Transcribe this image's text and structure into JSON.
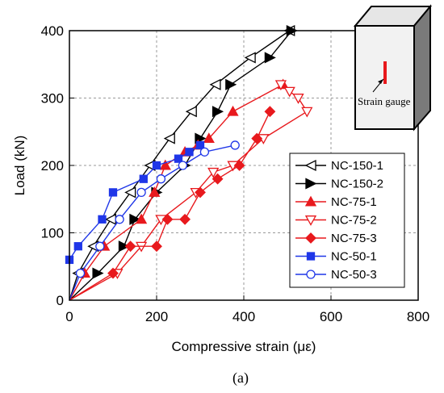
{
  "chart_data": {
    "type": "line",
    "title": "",
    "xlabel": "Compressive strain (με)",
    "ylabel": "Load (kN)",
    "xlim": [
      0,
      800
    ],
    "ylim": [
      0,
      400
    ],
    "xticks": [
      0,
      200,
      400,
      600,
      800
    ],
    "yticks": [
      0,
      100,
      200,
      300,
      400
    ],
    "grid": true,
    "legend_position": "right",
    "caption": "(a)",
    "inset": {
      "label": "Strain gauge",
      "gauge_color": "#e8191d"
    },
    "series": [
      {
        "name": "NC-150-1",
        "color": "#000000",
        "marker": "triangle-left",
        "filled": false,
        "x": [
          0,
          20,
          55,
          95,
          140,
          185,
          230,
          280,
          335,
          415,
          505
        ],
        "y": [
          0,
          40,
          80,
          120,
          160,
          200,
          240,
          280,
          320,
          360,
          400
        ]
      },
      {
        "name": "NC-150-2",
        "color": "#000000",
        "marker": "triangle-right",
        "filled": true,
        "x": [
          0,
          65,
          125,
          150,
          200,
          265,
          300,
          340,
          370,
          460,
          510
        ],
        "y": [
          0,
          40,
          80,
          120,
          160,
          200,
          240,
          280,
          320,
          360,
          400
        ]
      },
      {
        "name": "NC-75-1",
        "color": "#e8191d",
        "marker": "triangle-up",
        "filled": true,
        "x": [
          0,
          35,
          80,
          165,
          195,
          220,
          265,
          295,
          320,
          375,
          490
        ],
        "y": [
          0,
          40,
          80,
          120,
          160,
          200,
          220,
          230,
          240,
          280,
          320
        ]
      },
      {
        "name": "NC-75-2",
        "color": "#e8191d",
        "marker": "triangle-down",
        "filled": false,
        "x": [
          0,
          110,
          165,
          210,
          290,
          330,
          375,
          445,
          545,
          525,
          505,
          485
        ],
        "y": [
          0,
          40,
          80,
          120,
          160,
          190,
          200,
          240,
          280,
          300,
          310,
          320
        ]
      },
      {
        "name": "NC-75-3",
        "color": "#e8191d",
        "marker": "diamond",
        "filled": true,
        "x": [
          0,
          100,
          140,
          200,
          225,
          265,
          300,
          340,
          390,
          430,
          460
        ],
        "y": [
          0,
          40,
          80,
          80,
          120,
          120,
          160,
          180,
          200,
          240,
          280
        ]
      },
      {
        "name": "NC-50-1",
        "color": "#1f36e8",
        "marker": "square",
        "filled": true,
        "x": [
          0,
          20,
          75,
          100,
          170,
          200,
          250,
          275,
          300
        ],
        "y": [
          60,
          80,
          120,
          160,
          180,
          200,
          210,
          220,
          230
        ]
      },
      {
        "name": "NC-50-3",
        "color": "#1f36e8",
        "marker": "circle",
        "filled": false,
        "x": [
          0,
          25,
          70,
          115,
          165,
          210,
          260,
          310,
          380
        ],
        "y": [
          0,
          40,
          80,
          120,
          160,
          180,
          200,
          220,
          230
        ]
      }
    ]
  }
}
